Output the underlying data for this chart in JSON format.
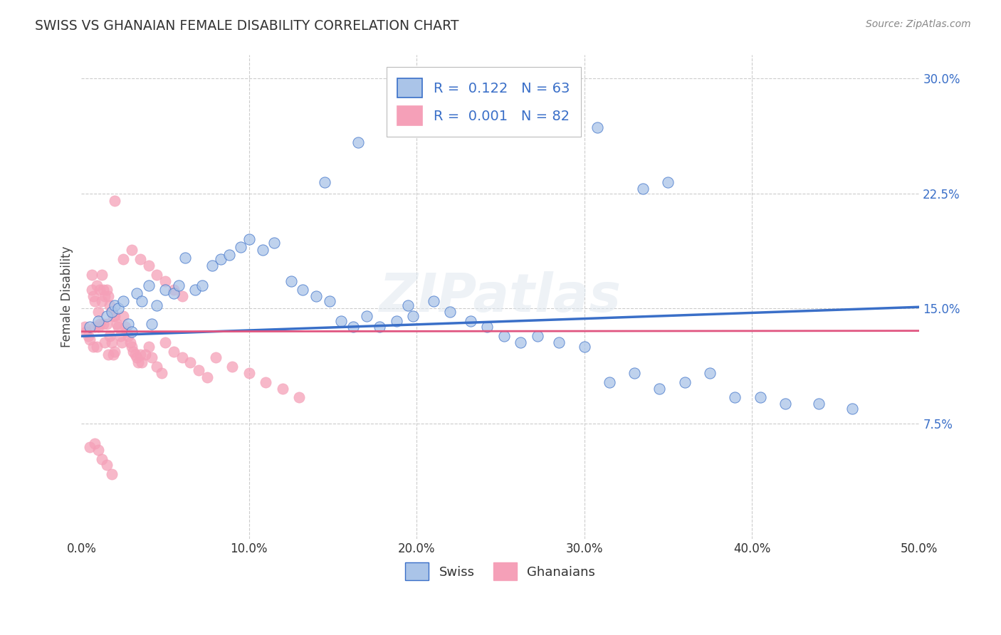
{
  "title": "SWISS VS GHANAIAN FEMALE DISABILITY CORRELATION CHART",
  "source": "Source: ZipAtlas.com",
  "ylabel": "Female Disability",
  "xlim": [
    0.0,
    0.5
  ],
  "ylim": [
    0.0,
    0.315
  ],
  "xtick_vals": [
    0.0,
    0.1,
    0.2,
    0.3,
    0.4,
    0.5
  ],
  "xtick_labels": [
    "0.0%",
    "10.0%",
    "20.0%",
    "30.0%",
    "40.0%",
    "50.0%"
  ],
  "ytick_vals": [
    0.075,
    0.15,
    0.225,
    0.3
  ],
  "ytick_labels": [
    "7.5%",
    "15.0%",
    "22.5%",
    "30.0%"
  ],
  "swiss_color": "#aac4e8",
  "ghanaian_color": "#f5a0b8",
  "swiss_line_color": "#3a6fc8",
  "ghanaian_line_color": "#e05580",
  "grid_color": "#cccccc",
  "background_color": "#ffffff",
  "swiss_x": [
    0.005,
    0.01,
    0.015,
    0.018,
    0.02,
    0.022,
    0.025,
    0.028,
    0.03,
    0.033,
    0.036,
    0.04,
    0.042,
    0.045,
    0.05,
    0.055,
    0.058,
    0.062,
    0.068,
    0.072,
    0.078,
    0.083,
    0.088,
    0.095,
    0.1,
    0.108,
    0.115,
    0.125,
    0.132,
    0.14,
    0.148,
    0.155,
    0.162,
    0.17,
    0.178,
    0.188,
    0.198,
    0.21,
    0.22,
    0.232,
    0.242,
    0.252,
    0.262,
    0.272,
    0.285,
    0.3,
    0.315,
    0.33,
    0.345,
    0.36,
    0.375,
    0.39,
    0.405,
    0.42,
    0.44,
    0.46,
    0.335,
    0.35,
    0.29,
    0.308,
    0.195,
    0.145,
    0.165
  ],
  "swiss_y": [
    0.138,
    0.142,
    0.145,
    0.148,
    0.152,
    0.15,
    0.155,
    0.14,
    0.135,
    0.16,
    0.155,
    0.165,
    0.14,
    0.152,
    0.162,
    0.16,
    0.165,
    0.183,
    0.162,
    0.165,
    0.178,
    0.182,
    0.185,
    0.19,
    0.195,
    0.188,
    0.193,
    0.168,
    0.162,
    0.158,
    0.155,
    0.142,
    0.138,
    0.145,
    0.138,
    0.142,
    0.145,
    0.155,
    0.148,
    0.142,
    0.138,
    0.132,
    0.128,
    0.132,
    0.128,
    0.125,
    0.102,
    0.108,
    0.098,
    0.102,
    0.108,
    0.092,
    0.092,
    0.088,
    0.088,
    0.085,
    0.228,
    0.232,
    0.272,
    0.268,
    0.152,
    0.232,
    0.258
  ],
  "ghanaian_x": [
    0.002,
    0.003,
    0.004,
    0.005,
    0.006,
    0.006,
    0.007,
    0.007,
    0.008,
    0.008,
    0.009,
    0.009,
    0.01,
    0.01,
    0.011,
    0.011,
    0.012,
    0.012,
    0.013,
    0.013,
    0.014,
    0.014,
    0.015,
    0.015,
    0.016,
    0.016,
    0.017,
    0.017,
    0.018,
    0.018,
    0.019,
    0.019,
    0.02,
    0.02,
    0.021,
    0.022,
    0.023,
    0.024,
    0.025,
    0.026,
    0.027,
    0.028,
    0.029,
    0.03,
    0.031,
    0.032,
    0.033,
    0.034,
    0.035,
    0.036,
    0.038,
    0.04,
    0.042,
    0.045,
    0.048,
    0.05,
    0.055,
    0.06,
    0.065,
    0.07,
    0.075,
    0.08,
    0.09,
    0.1,
    0.11,
    0.12,
    0.13,
    0.025,
    0.03,
    0.035,
    0.04,
    0.045,
    0.05,
    0.055,
    0.06,
    0.008,
    0.01,
    0.012,
    0.015,
    0.018,
    0.02,
    0.005
  ],
  "ghanaian_y": [
    0.138,
    0.135,
    0.132,
    0.13,
    0.172,
    0.162,
    0.158,
    0.125,
    0.138,
    0.155,
    0.165,
    0.125,
    0.138,
    0.148,
    0.162,
    0.14,
    0.172,
    0.155,
    0.162,
    0.14,
    0.158,
    0.128,
    0.162,
    0.14,
    0.158,
    0.12,
    0.152,
    0.132,
    0.148,
    0.128,
    0.145,
    0.12,
    0.145,
    0.122,
    0.14,
    0.138,
    0.132,
    0.128,
    0.145,
    0.138,
    0.135,
    0.132,
    0.128,
    0.125,
    0.122,
    0.12,
    0.118,
    0.115,
    0.12,
    0.115,
    0.12,
    0.125,
    0.118,
    0.112,
    0.108,
    0.128,
    0.122,
    0.118,
    0.115,
    0.11,
    0.105,
    0.118,
    0.112,
    0.108,
    0.102,
    0.098,
    0.092,
    0.182,
    0.188,
    0.182,
    0.178,
    0.172,
    0.168,
    0.162,
    0.158,
    0.062,
    0.058,
    0.052,
    0.048,
    0.042,
    0.22,
    0.06
  ]
}
